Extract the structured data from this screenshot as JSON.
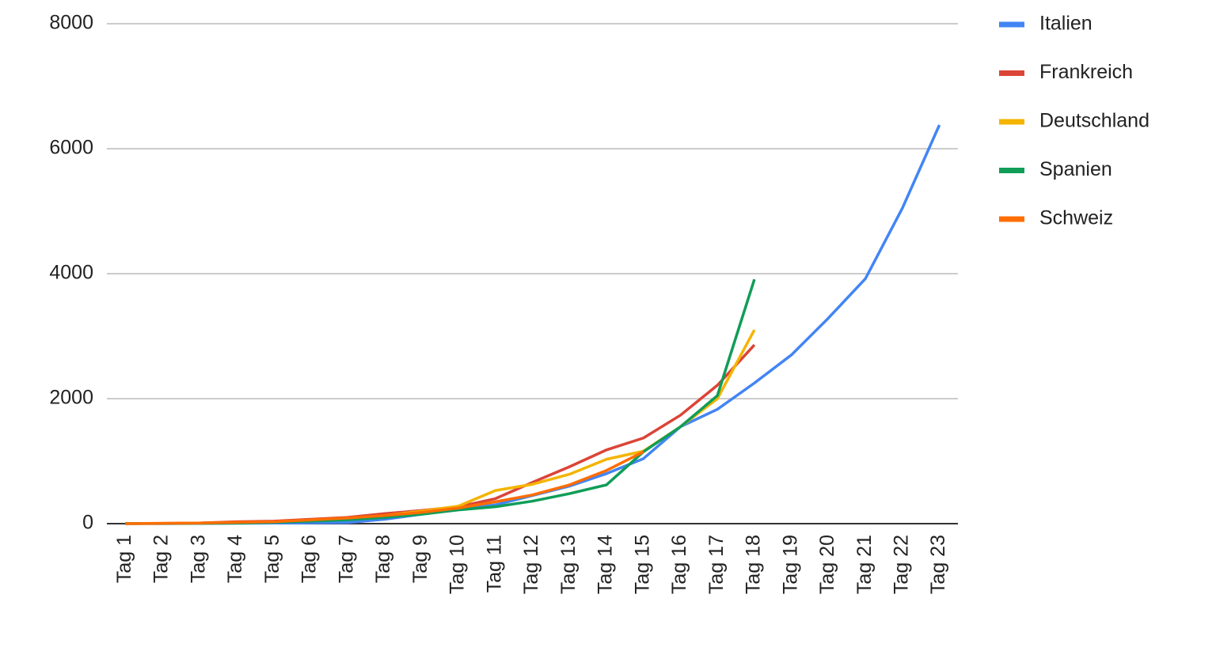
{
  "chart_data": {
    "type": "line",
    "categories": [
      "Tag 1",
      "Tag 2",
      "Tag 3",
      "Tag 4",
      "Tag 5",
      "Tag 6",
      "Tag 7",
      "Tag 8",
      "Tag 9",
      "Tag 10",
      "Tag 11",
      "Tag 12",
      "Tag 13",
      "Tag 14",
      "Tag 15",
      "Tag 16",
      "Tag 17",
      "Tag 18",
      "Tag 19",
      "Tag 20",
      "Tag 21",
      "Tag 22",
      "Tag 23"
    ],
    "series": [
      {
        "name": "Italien",
        "color": "#4285f4",
        "values": [
          1,
          2,
          3,
          7,
          10,
          12,
          17,
          70,
          150,
          230,
          300,
          450,
          600,
          800,
          1040,
          1550,
          1830,
          2250,
          2700,
          3290,
          3920,
          5050,
          6380
        ]
      },
      {
        "name": "Frankreich",
        "color": "#db4437",
        "values": [
          2,
          5,
          10,
          30,
          40,
          70,
          100,
          160,
          210,
          270,
          400,
          660,
          910,
          1180,
          1370,
          1735,
          2215,
          2860,
          null,
          null,
          null,
          null,
          null
        ]
      },
      {
        "name": "Deutschland",
        "color": "#f4b400",
        "values": [
          1,
          3,
          8,
          15,
          25,
          50,
          80,
          130,
          200,
          280,
          530,
          630,
          790,
          1030,
          1160,
          1550,
          2000,
          3100,
          null,
          null,
          null,
          null,
          null
        ]
      },
      {
        "name": "Spanien",
        "color": "#0f9d58",
        "values": [
          1,
          2,
          5,
          10,
          20,
          40,
          60,
          100,
          150,
          220,
          270,
          360,
          480,
          620,
          1150,
          1550,
          2050,
          3910,
          null,
          null,
          null,
          null,
          null
        ]
      },
      {
        "name": "Schweiz",
        "color": "#ff6d01",
        "values": [
          0,
          5,
          10,
          20,
          30,
          60,
          90,
          130,
          180,
          250,
          350,
          460,
          620,
          850,
          1150,
          null,
          null,
          null,
          null,
          null,
          null,
          null,
          null
        ]
      }
    ],
    "ylim": [
      0,
      8000
    ],
    "yticks": [
      0,
      2000,
      4000,
      6000,
      8000
    ],
    "grid": true,
    "legend": "right"
  }
}
